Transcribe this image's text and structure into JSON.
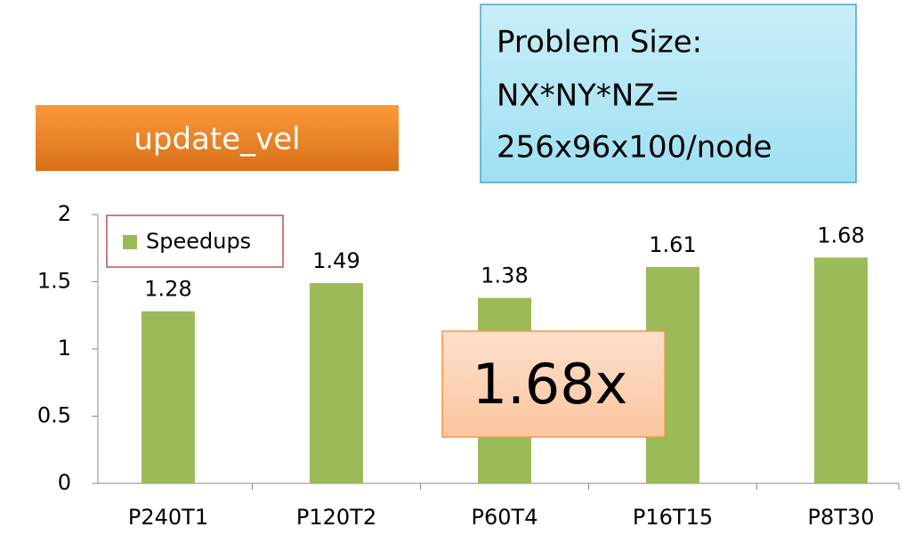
{
  "chart_data": {
    "type": "bar",
    "annotations": {
      "function": "update_vel",
      "problem_size": [
        "Problem Size:",
        "NX*NY*NZ=",
        "256x96x100/node"
      ],
      "speedup": "1.68x"
    },
    "categories": [
      "P240T1",
      "P120T2",
      "P60T4",
      "P16T15",
      "P8T30"
    ],
    "series": [
      {
        "name": "Speedups",
        "color": "#9bbb59",
        "values": [
          1.28,
          1.49,
          1.38,
          1.61,
          1.68
        ]
      }
    ],
    "ylim": [
      0,
      2
    ],
    "yticks": [
      0,
      0.5,
      1,
      1.5,
      2
    ],
    "legend": "upper left"
  }
}
